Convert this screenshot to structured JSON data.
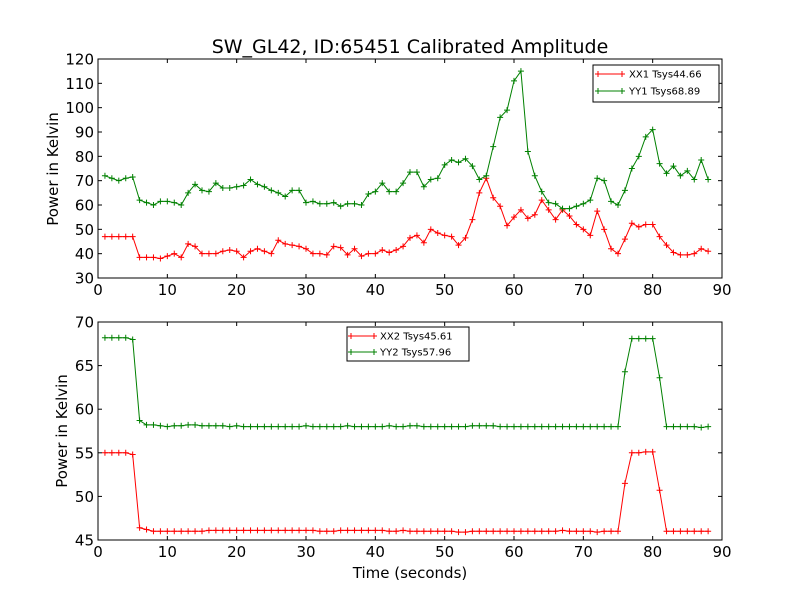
{
  "chart_data": {
    "title": "SW_GL42, ID:65451 Calibrated Amplitude",
    "xlabel": "Time (seconds)",
    "panels": [
      {
        "type": "line",
        "title": "SW_GL42, ID:65451 Calibrated Amplitude",
        "ylabel": "Power in Kelvin",
        "xlim": [
          0,
          90
        ],
        "ylim": [
          30,
          120
        ],
        "xticks": [
          "0",
          "10",
          "20",
          "30",
          "40",
          "50",
          "60",
          "70",
          "80",
          "90"
        ],
        "yticks": [
          "30",
          "40",
          "50",
          "60",
          "70",
          "80",
          "90",
          "100",
          "110",
          "120"
        ],
        "legend_position": "top-right",
        "x": [
          1,
          2,
          3,
          4,
          5,
          6,
          7,
          8,
          9,
          10,
          11,
          12,
          13,
          14,
          15,
          16,
          17,
          18,
          19,
          20,
          21,
          22,
          23,
          24,
          25,
          26,
          27,
          28,
          29,
          30,
          31,
          32,
          33,
          34,
          35,
          36,
          37,
          38,
          39,
          40,
          41,
          42,
          43,
          44,
          45,
          46,
          47,
          48,
          49,
          50,
          51,
          52,
          53,
          54,
          55,
          56,
          57,
          58,
          59,
          60,
          61,
          62,
          63,
          64,
          65,
          66,
          67,
          68,
          69,
          70,
          71,
          72,
          73,
          74,
          75,
          76,
          77,
          78,
          79,
          80,
          81,
          82,
          83,
          84,
          85,
          86,
          87,
          88
        ],
        "series": [
          {
            "name": "XX1 Tsys44.66",
            "color": "#ff0000",
            "values": [
              47,
              47,
              47,
              47,
              47,
              38.5,
              38.5,
              38.5,
              38,
              39,
              40,
              38.5,
              44,
              43,
              40,
              40,
              40,
              41,
              41.5,
              41,
              38.5,
              41,
              42,
              41,
              40,
              45.5,
              44,
              43.5,
              43,
              42,
              40,
              40,
              39.5,
              43,
              42.5,
              39.5,
              42,
              39,
              40,
              40,
              41.5,
              40.5,
              41.5,
              43,
              46.5,
              47.5,
              44.5,
              50,
              48.5,
              47.5,
              47,
              43.5,
              46.5,
              54,
              65,
              71,
              63,
              59.5,
              51.5,
              55,
              58,
              54.5,
              56,
              62,
              58,
              54,
              58,
              55.5,
              52,
              50,
              47.5,
              57.5,
              50,
              42,
              40,
              46,
              52.5,
              51,
              52,
              52,
              47,
              43.5,
              40.5,
              39.5,
              39.5,
              40,
              42,
              41
            ]
          },
          {
            "name": "YY1 Tsys68.89",
            "color": "#008000",
            "values": [
              72,
              71,
              70,
              71,
              71.5,
              62,
              61,
              60,
              61.5,
              61.5,
              61,
              60,
              65,
              68.5,
              66,
              65.5,
              69,
              67,
              67,
              67.5,
              68,
              70.5,
              68.5,
              67.5,
              66,
              65,
              63.5,
              66,
              66,
              61,
              61.5,
              60.5,
              60.5,
              61,
              59.5,
              60.5,
              60.5,
              60,
              64.5,
              65.5,
              69,
              65.5,
              65.5,
              69,
              73.5,
              73.5,
              67.5,
              70.5,
              71,
              76.5,
              78.5,
              77.5,
              79,
              76,
              70.5,
              72,
              84,
              96,
              99,
              111,
              115,
              82,
              72,
              65.5,
              61,
              60.5,
              58.5,
              58.5,
              59.5,
              60.5,
              62,
              71,
              70,
              61.5,
              60,
              66,
              75,
              80,
              88,
              91,
              77,
              73,
              76,
              72,
              74,
              70.5,
              78.5,
              70.5
            ]
          }
        ]
      },
      {
        "type": "line",
        "ylabel": "Power in Kelvin",
        "xlim": [
          0,
          90
        ],
        "ylim": [
          45,
          70
        ],
        "xticks": [
          "0",
          "10",
          "20",
          "30",
          "40",
          "50",
          "60",
          "70",
          "80",
          "90"
        ],
        "yticks": [
          "45",
          "50",
          "55",
          "60",
          "65",
          "70"
        ],
        "legend_position": "upper center",
        "x": [
          1,
          2,
          3,
          4,
          5,
          6,
          7,
          8,
          9,
          10,
          11,
          12,
          13,
          14,
          15,
          16,
          17,
          18,
          19,
          20,
          21,
          22,
          23,
          24,
          25,
          26,
          27,
          28,
          29,
          30,
          31,
          32,
          33,
          34,
          35,
          36,
          37,
          38,
          39,
          40,
          41,
          42,
          43,
          44,
          45,
          46,
          47,
          48,
          49,
          50,
          51,
          52,
          53,
          54,
          55,
          56,
          57,
          58,
          59,
          60,
          61,
          62,
          63,
          64,
          65,
          66,
          67,
          68,
          69,
          70,
          71,
          72,
          73,
          74,
          75,
          76,
          77,
          78,
          79,
          80,
          81,
          82,
          83,
          84,
          85,
          86,
          87,
          88
        ],
        "series": [
          {
            "name": "XX2 Tsys45.61",
            "color": "#ff0000",
            "values": [
              55,
              55,
              55,
              55,
              54.8,
              46.4,
              46.2,
              46,
              46,
              46,
              46,
              46,
              46,
              46,
              46,
              46.1,
              46.1,
              46.1,
              46.1,
              46.1,
              46.1,
              46.1,
              46.1,
              46.1,
              46.1,
              46.1,
              46.1,
              46.1,
              46.1,
              46.1,
              46.1,
              46,
              46,
              46,
              46.1,
              46.1,
              46.1,
              46.1,
              46.1,
              46.1,
              46.1,
              46,
              46,
              46.1,
              46,
              46,
              46,
              46,
              46,
              46,
              46,
              45.9,
              45.9,
              46,
              46,
              46,
              46,
              46,
              46,
              46,
              46,
              46,
              46,
              46,
              46,
              46,
              46.1,
              46,
              46,
              46,
              46,
              45.9,
              46,
              46,
              46,
              51.5,
              55,
              55,
              55.1,
              55.1,
              50.7,
              46,
              46,
              46,
              46,
              46,
              46,
              46
            ]
          },
          {
            "name": "YY2 Tsys57.96",
            "color": "#008000",
            "values": [
              68.2,
              68.2,
              68.2,
              68.2,
              68,
              58.7,
              58.2,
              58.2,
              58.1,
              58,
              58.1,
              58.1,
              58.2,
              58.2,
              58.1,
              58.1,
              58.1,
              58.1,
              58,
              58.1,
              58,
              58,
              58,
              58,
              58,
              58,
              58,
              58,
              58,
              58.1,
              58,
              58,
              58,
              58,
              58,
              58.1,
              58,
              58,
              58,
              58,
              58,
              58.1,
              58,
              58,
              58.1,
              58.1,
              58,
              58,
              58,
              58,
              58,
              58,
              58,
              58.1,
              58.1,
              58.1,
              58.1,
              58,
              58,
              58,
              58,
              58,
              58,
              58,
              58,
              58,
              58,
              58,
              58,
              58,
              58,
              58,
              58,
              58,
              58,
              64.3,
              68.1,
              68.1,
              68.1,
              68.1,
              63.6,
              58,
              58,
              58,
              58,
              58,
              57.9,
              58
            ]
          }
        ]
      }
    ]
  }
}
